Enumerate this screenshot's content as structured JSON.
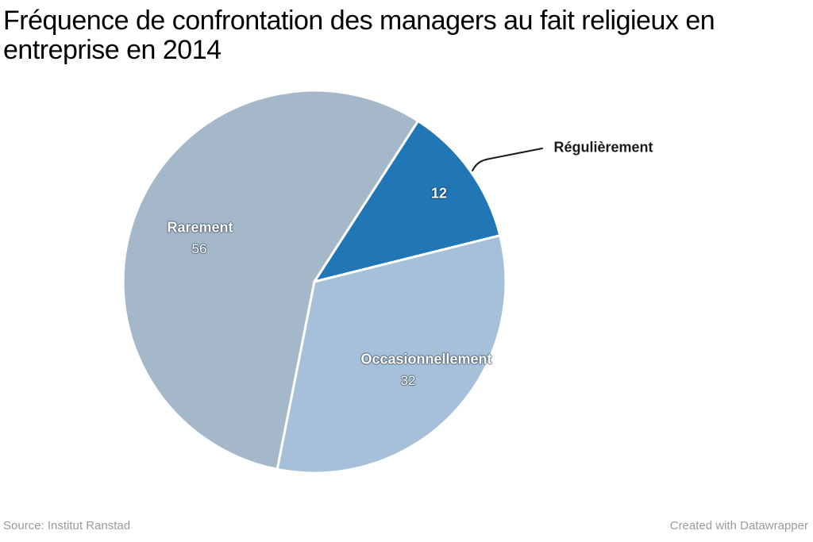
{
  "title": {
    "line1": "Fréquence de confrontation des managers au fait religieux en",
    "line2": "entreprise en 2014"
  },
  "footer": {
    "source": "Source: Institut Ranstad",
    "credit": "Created with Datawrapper"
  },
  "chart_data": {
    "type": "pie",
    "title": "Fréquence de confrontation des managers au fait religieux en entreprise en 2014",
    "values_unit": "percent",
    "slices": [
      {
        "label": "Rarement",
        "value": 56,
        "color": "#a5b8ca",
        "label_placement": "inside"
      },
      {
        "label": "Régulièrement",
        "value": 12,
        "color": "#2176b5",
        "label_placement": "outside-callout"
      },
      {
        "label": "Occasionnellement",
        "value": 32,
        "color": "#a6c0da",
        "label_placement": "inside"
      }
    ],
    "layout": {
      "start_angle_deg": 191.2,
      "direction": "clockwise",
      "divider_color": "#ffffff",
      "legend": "none",
      "inside_label_color": "#ffffff",
      "callout_line_color": "#1a1a1a"
    }
  }
}
